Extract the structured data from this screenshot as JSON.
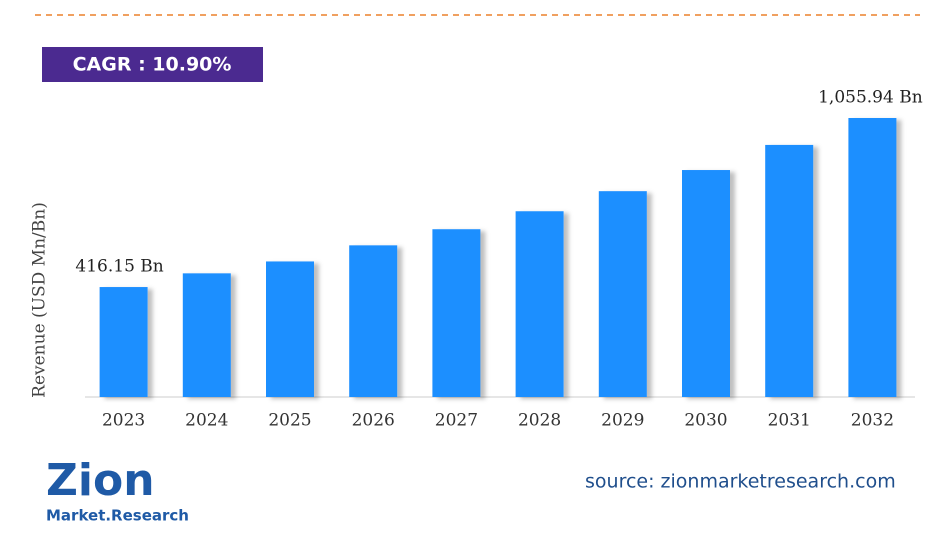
{
  "chart_data": {
    "type": "bar",
    "badge": "CAGR : 10.90%",
    "y_label": "Revenue (USD Mn/Bn)",
    "categories": [
      "2023",
      "2024",
      "2025",
      "2026",
      "2027",
      "2028",
      "2029",
      "2030",
      "2031",
      "2032"
    ],
    "values": [
      416.15,
      468,
      513,
      574,
      635,
      703,
      779,
      859,
      954,
      1055.94
    ],
    "value_labels": [
      "416.15 Bn",
      null,
      null,
      null,
      null,
      null,
      null,
      null,
      null,
      "1,055.94 Bn"
    ],
    "color": "#1e8fff",
    "source": "source: zionmarketresearch.com",
    "logo": {
      "name": "Zion",
      "sub": "Market.Research"
    }
  }
}
